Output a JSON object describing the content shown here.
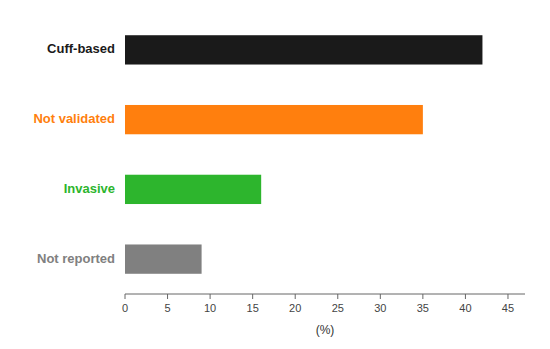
{
  "chart_data": {
    "type": "bar",
    "orientation": "horizontal",
    "categories": [
      "Cuff-based",
      "Not validated",
      "Invasive",
      "Not reported"
    ],
    "values": [
      42,
      35,
      16,
      9
    ],
    "colors": [
      "#1a1a1a",
      "#ff7f0e",
      "#2db52d",
      "#808080"
    ],
    "xlabel": "(%)",
    "xlim": [
      0,
      47
    ],
    "xticks": [
      0,
      5,
      10,
      15,
      20,
      25,
      30,
      35,
      40,
      45
    ],
    "grid": false
  }
}
